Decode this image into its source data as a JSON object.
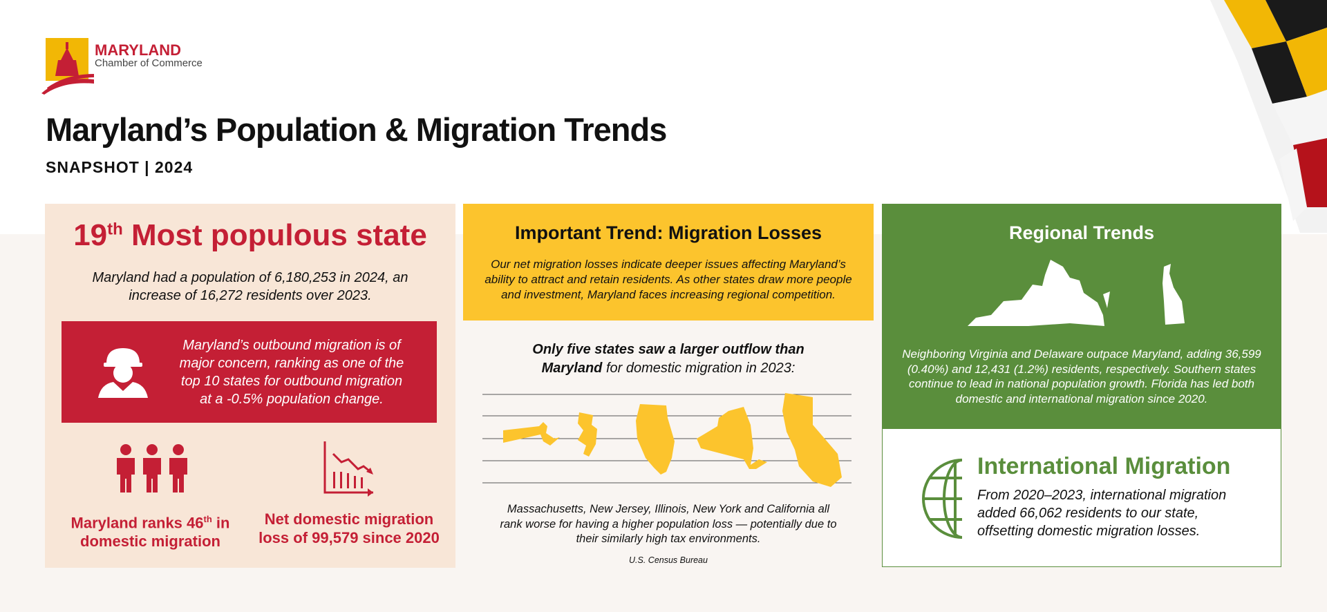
{
  "header": {
    "logo_name": "MARYLAND",
    "logo_subtitle": "Chamber of Commerce",
    "title": "Maryland’s Population & Migration Trends",
    "subtitle": "SNAPSHOT | 2024"
  },
  "population_panel": {
    "rank": "19",
    "rank_suffix": "th",
    "heading": "Most populous state",
    "summary": "Maryland had a population of 6,180,253 in 2024, an increase of 16,272 residents over 2023.",
    "callout": "Maryland’s outbound migration is of major concern, ranking as one of the top 10 states for outbound migration at a -0.5% population change.",
    "stat_1_start": "Maryland ranks 46",
    "stat_1_suffix": "th",
    "stat_1_end": "in domestic migration",
    "stat_2": "Net domestic migration loss of 99,579 since 2020"
  },
  "migration_panel": {
    "heading": "Important Trend: Migration Losses",
    "intro": "Our net migration losses indicate deeper issues affecting Maryland’s ability to attract and retain residents. As other states draw more people and investment, Maryland faces increasing regional competition.",
    "chart_heading_bold": "Only five states saw a larger outflow than Maryland",
    "chart_heading_rest": "for domestic migration in 2023:",
    "note": "Massachusetts, New Jersey, Illinois, New York and California all rank worse for having a higher population loss — potentially due to their similarly high tax environments.",
    "source": "U.S. Census Bureau"
  },
  "regional_panel": {
    "heading": "Regional Trends",
    "body": "Neighboring Virginia and Delaware outpace Maryland, adding 36,599 (0.40%) and 12,431 (1.2%) residents, respectively. Southern states continue to lead in national population growth. Florida has led both domestic and international migration since 2020.",
    "intl_heading": "International Migration",
    "intl_body": "From 2020–2023, international migration added 66,062 residents to our state, offsetting domestic migration losses."
  }
}
